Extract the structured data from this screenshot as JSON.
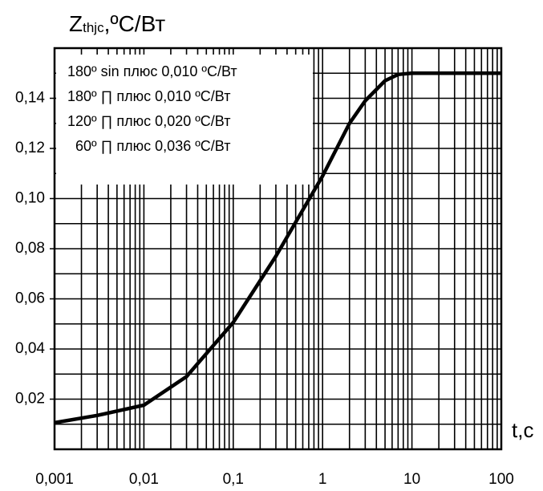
{
  "chart_data": {
    "type": "line",
    "ylabel": [
      "Z",
      "thjc",
      ",ºC/Вт"
    ],
    "xlabel": "t,c",
    "log_x": true,
    "grid": true,
    "xlim": [
      0.001,
      100
    ],
    "xticks": [
      {
        "value": 0.001,
        "label": "0,001"
      },
      {
        "value": 0.01,
        "label": "0,01"
      },
      {
        "value": 0.1,
        "label": "0,1"
      },
      1,
      10,
      100
    ],
    "ylim": [
      0,
      0.16
    ],
    "yticks": [
      {
        "value": 0.02,
        "label": "0,02"
      },
      {
        "value": 0.04,
        "label": "0,04"
      },
      {
        "value": 0.06,
        "label": "0,06"
      },
      {
        "value": 0.08,
        "label": "0,08"
      },
      {
        "value": 0.1,
        "label": "0,10"
      },
      {
        "value": 0.12,
        "label": "0,12"
      },
      {
        "value": 0.14,
        "label": "0,14"
      }
    ],
    "y_minor_ticks": [
      0.01,
      0.03,
      0.05,
      0.07,
      0.09,
      0.11,
      0.13,
      0.15
    ],
    "annotations": [
      "180º sin плюс 0,010 ºC/Вт",
      "180º  ∏ плюс 0,010 ºC/Вт",
      "120º  ∏ плюс 0,020 ºC/Вт",
      "60º  ∏ плюс 0,036 ºC/Вт"
    ],
    "series": [
      {
        "color": "#000000",
        "x": [
          0.001,
          0.003,
          0.01,
          0.03,
          0.1,
          0.3,
          1,
          2,
          3,
          5,
          7,
          10,
          100
        ],
        "values": [
          0.0106,
          0.0135,
          0.0176,
          0.029,
          0.0506,
          0.077,
          0.109,
          0.13,
          0.139,
          0.147,
          0.1495,
          0.15,
          0.15
        ]
      }
    ]
  }
}
